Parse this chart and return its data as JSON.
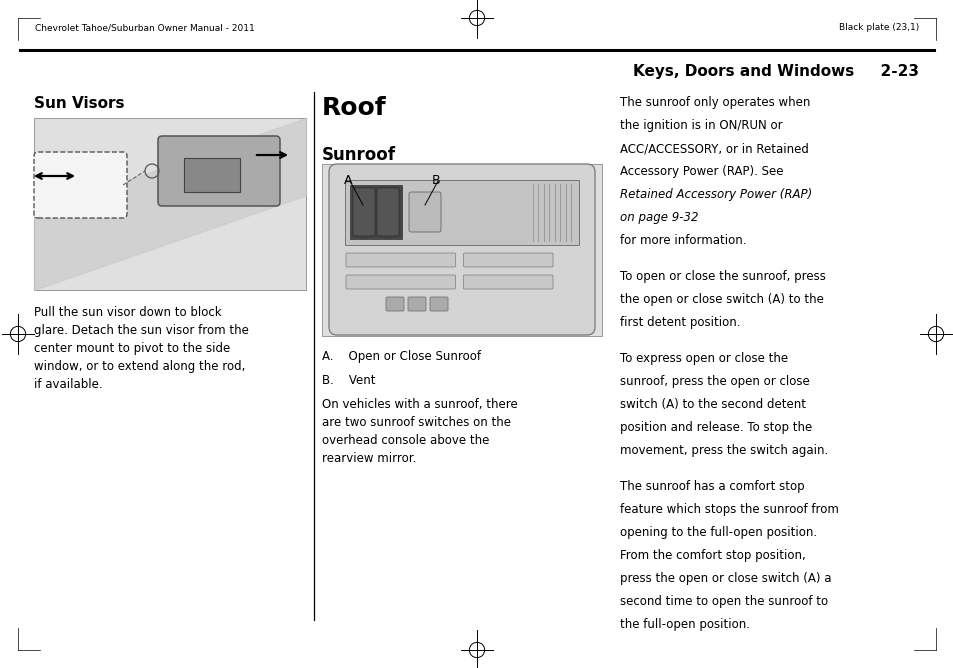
{
  "bg_color": "#ffffff",
  "figw": 9.54,
  "figh": 6.68,
  "dpi": 100,
  "header_left": "Chevrolet Tahoe/Suburban Owner Manual - 2011",
  "header_right": "Black plate (23,1)",
  "section_title": "Keys, Doors and Windows",
  "section_num": "2-23",
  "col1_heading": "Sun Visors",
  "col2_h1": "Roof",
  "col2_h2": "Sunroof",
  "col1_body": "Pull the sun visor down to block\nglare. Detach the sun visor from the\ncenter mount to pivot to the side\nwindow, or to extend along the rod,\nif available.",
  "col2_cap_a": "A.    Open or Close Sunroof",
  "col2_cap_b": "B.    Vent",
  "col2_body": "On vehicles with a sunroof, there\nare two sunroof switches on the\noverhead console above the\nrearview mirror.",
  "col3_p1_a": "The sunroof only operates when\nthe ignition is in ON/RUN or\nACC/ACCESSORY, or in Retained\nAccessory Power (RAP). See",
  "col3_p1_italic": "Retained Accessory Power (RAP)\non page 9-32",
  "col3_p1_b": "for more information.",
  "col3_p2": "To open or close the sunroof, press\nthe open or close switch (A) to the\nfirst detent position.",
  "col3_p3": "To express open or close the\nsunroof, press the open or close\nswitch (A) to the second detent\nposition and release. To stop the\nmovement, press the switch again.",
  "col3_p4": "The sunroof has a comfort stop\nfeature which stops the sunroof from\nopening to the full-open position.\nFrom the comfort stop position,\npress the open or close switch (A) a\nsecond time to open the sunroof to\nthe full-open position.",
  "tc": "#000000",
  "lc": "#000000"
}
